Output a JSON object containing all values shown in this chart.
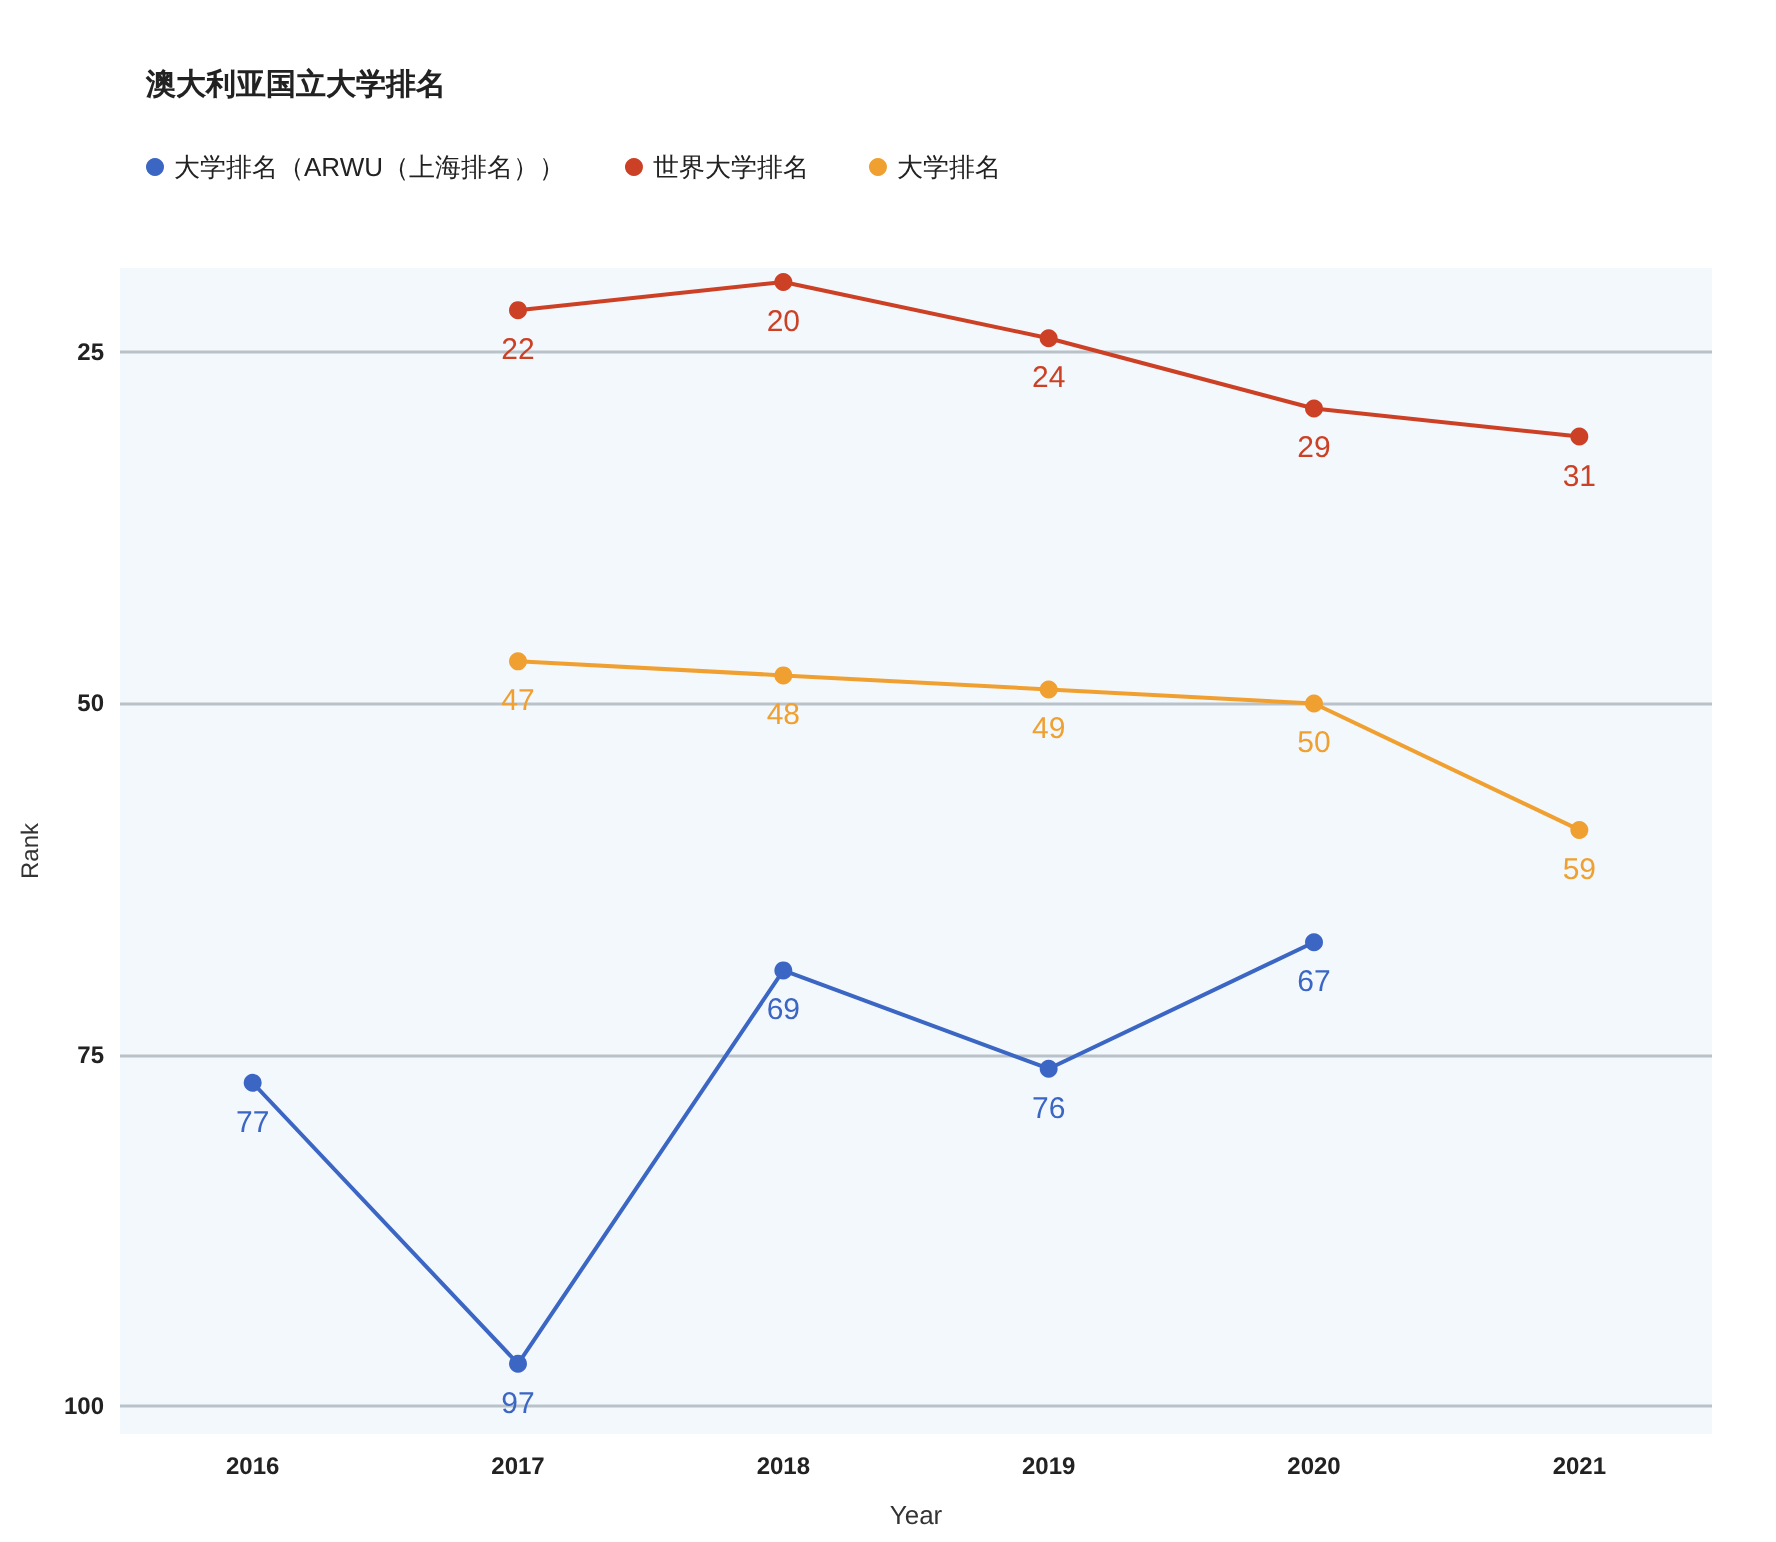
{
  "chart_data": {
    "type": "line",
    "title": "澳大利亚国立大学排名",
    "xlabel": "Year",
    "ylabel": "Rank",
    "categories": [
      "2016",
      "2017",
      "2018",
      "2019",
      "2020",
      "2021"
    ],
    "series": [
      {
        "name": "大学排名（ARWU（上海排名））",
        "color": "#3b66c4",
        "values": [
          77,
          97,
          69,
          76,
          67,
          null
        ]
      },
      {
        "name": "世界大学排名",
        "color": "#cc4125",
        "values": [
          null,
          22,
          20,
          24,
          29,
          31
        ]
      },
      {
        "name": "大学排名",
        "color": "#f0a030",
        "values": [
          null,
          47,
          48,
          49,
          50,
          59
        ]
      }
    ],
    "ylim": [
      102,
      19
    ],
    "yticks": [
      25,
      50,
      75,
      100
    ],
    "grid": "y",
    "legend": "top left",
    "marker": "circle",
    "line_style": "solid",
    "data_labels": true
  }
}
